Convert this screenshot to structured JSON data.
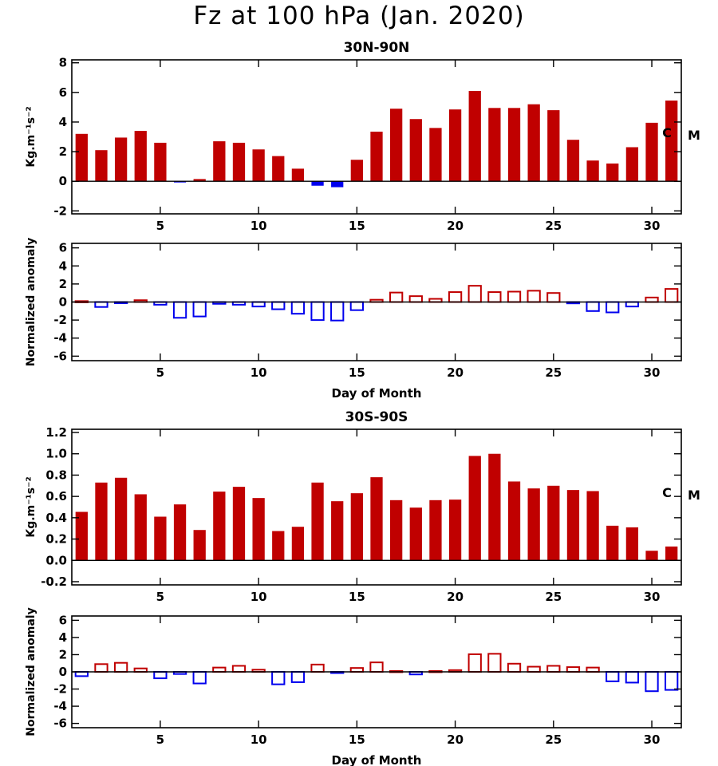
{
  "title": "Fz at 100 hPa (Jan. 2020)",
  "colors": {
    "positive": "#c00000",
    "negative": "#0000ee",
    "axis": "#000000"
  },
  "chart_data": [
    {
      "type": "bar",
      "region": "30N-90N",
      "subtitle": "30N-90N",
      "ylabel": "Kg.m⁻¹s⁻²",
      "xlabel": "",
      "x": [
        1,
        2,
        3,
        4,
        5,
        6,
        7,
        8,
        9,
        10,
        11,
        12,
        13,
        14,
        15,
        16,
        17,
        18,
        19,
        20,
        21,
        22,
        23,
        24,
        25,
        26,
        27,
        28,
        29,
        30,
        31
      ],
      "values": [
        3.2,
        2.1,
        2.95,
        3.4,
        2.6,
        -0.05,
        0.15,
        2.7,
        2.6,
        2.15,
        1.7,
        0.85,
        -0.3,
        -0.4,
        1.45,
        3.35,
        4.9,
        4.2,
        3.6,
        4.85,
        6.1,
        4.95,
        4.95,
        5.2,
        4.8,
        2.8,
        1.4,
        1.2,
        2.3,
        3.95,
        5.45
      ],
      "xlim": [
        0.5,
        31.5
      ],
      "ylim": [
        -2.2,
        8.2
      ],
      "yticks": [
        -2,
        0,
        2,
        4,
        6,
        8
      ],
      "xticks": [
        5,
        10,
        15,
        20,
        25,
        30
      ],
      "bar_style": "filled",
      "markers": [
        "C",
        "M"
      ]
    },
    {
      "type": "bar",
      "region": "30N-90N",
      "subtitle": "",
      "ylabel": "Normalized anomaly",
      "xlabel": "Day of Month",
      "x": [
        1,
        2,
        3,
        4,
        5,
        6,
        7,
        8,
        9,
        10,
        11,
        12,
        13,
        14,
        15,
        16,
        17,
        18,
        19,
        20,
        21,
        22,
        23,
        24,
        25,
        26,
        27,
        28,
        29,
        30,
        31
      ],
      "values": [
        0.1,
        -0.55,
        -0.1,
        0.2,
        -0.3,
        -1.75,
        -1.6,
        -0.2,
        -0.3,
        -0.5,
        -0.8,
        -1.3,
        -2.0,
        -2.05,
        -0.9,
        0.25,
        1.05,
        0.65,
        0.35,
        1.1,
        1.8,
        1.1,
        1.15,
        1.25,
        1.0,
        -0.15,
        -1.0,
        -1.15,
        -0.5,
        0.5,
        1.45
      ],
      "xlim": [
        0.5,
        31.5
      ],
      "ylim": [
        -6.5,
        6.5
      ],
      "yticks": [
        -6,
        -4,
        -2,
        0,
        2,
        4,
        6
      ],
      "xticks": [
        5,
        10,
        15,
        20,
        25,
        30
      ],
      "bar_style": "outline",
      "markers": []
    },
    {
      "type": "bar",
      "region": "30S-90S",
      "subtitle": "30S-90S",
      "ylabel": "Kg.m⁻¹s⁻²",
      "xlabel": "",
      "x": [
        1,
        2,
        3,
        4,
        5,
        6,
        7,
        8,
        9,
        10,
        11,
        12,
        13,
        14,
        15,
        16,
        17,
        18,
        19,
        20,
        21,
        22,
        23,
        24,
        25,
        26,
        27,
        28,
        29,
        30,
        31
      ],
      "values": [
        0.455,
        0.73,
        0.775,
        0.62,
        0.41,
        0.525,
        0.285,
        0.645,
        0.69,
        0.585,
        0.275,
        0.315,
        0.73,
        0.555,
        0.63,
        0.78,
        0.565,
        0.495,
        0.565,
        0.57,
        0.98,
        1.0,
        0.74,
        0.675,
        0.7,
        0.66,
        0.65,
        0.325,
        0.31,
        0.09,
        0.13
      ],
      "xlim": [
        0.5,
        31.5
      ],
      "ylim": [
        -0.23,
        1.23
      ],
      "yticks": [
        -0.2,
        0.0,
        0.2,
        0.4,
        0.6,
        0.8,
        1.0,
        1.2
      ],
      "xticks": [
        5,
        10,
        15,
        20,
        25,
        30
      ],
      "bar_style": "filled",
      "markers": [
        "C",
        "M"
      ]
    },
    {
      "type": "bar",
      "region": "30S-90S",
      "subtitle": "",
      "ylabel": "Normalized anomaly",
      "xlabel": "Day of Month",
      "x": [
        1,
        2,
        3,
        4,
        5,
        6,
        7,
        8,
        9,
        10,
        11,
        12,
        13,
        14,
        15,
        16,
        17,
        18,
        19,
        20,
        21,
        22,
        23,
        24,
        25,
        26,
        27,
        28,
        29,
        30,
        31
      ],
      "values": [
        -0.5,
        0.9,
        1.05,
        0.4,
        -0.75,
        -0.25,
        -1.35,
        0.5,
        0.7,
        0.25,
        -1.45,
        -1.2,
        0.85,
        -0.1,
        0.45,
        1.1,
        0.1,
        -0.3,
        0.1,
        0.2,
        2.05,
        2.1,
        0.95,
        0.6,
        0.7,
        0.55,
        0.5,
        -1.1,
        -1.25,
        -2.25,
        -2.1
      ],
      "xlim": [
        0.5,
        31.5
      ],
      "ylim": [
        -6.5,
        6.5
      ],
      "yticks": [
        -6,
        -4,
        -2,
        0,
        2,
        4,
        6
      ],
      "xticks": [
        5,
        10,
        15,
        20,
        25,
        30
      ],
      "bar_style": "outline",
      "markers": []
    }
  ]
}
